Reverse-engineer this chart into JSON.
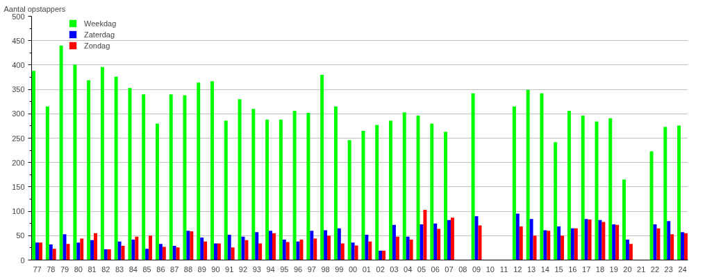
{
  "chart_data": {
    "type": "bar",
    "ylabel": "Aantal opstappers",
    "categories": [
      "77",
      "78",
      "79",
      "80",
      "81",
      "82",
      "83",
      "84",
      "85",
      "86",
      "87",
      "88",
      "89",
      "90",
      "91",
      "92",
      "93",
      "94",
      "95",
      "96",
      "97",
      "98",
      "99",
      "00",
      "01",
      "02",
      "03",
      "04",
      "05",
      "06",
      "07",
      "08",
      "09",
      "10",
      "11",
      "12",
      "13",
      "14",
      "15",
      "16",
      "17",
      "18",
      "19",
      "20",
      "21",
      "22",
      "23",
      "24"
    ],
    "series": [
      {
        "name": "Weekdag",
        "color": "#00ff00",
        "values": [
          388,
          315,
          440,
          401,
          369,
          396,
          376,
          353,
          340,
          280,
          340,
          338,
          364,
          367,
          286,
          330,
          310,
          288,
          288,
          306,
          302,
          380,
          315,
          246,
          265,
          277,
          286,
          303,
          296,
          280,
          263,
          null,
          342,
          null,
          null,
          315,
          349,
          342,
          242,
          306,
          296,
          284,
          291,
          165,
          null,
          223,
          273,
          276
        ]
      },
      {
        "name": "Zaterdag",
        "color": "#0000ff",
        "values": [
          36,
          32,
          53,
          36,
          41,
          22,
          38,
          42,
          23,
          33,
          29,
          60,
          46,
          34,
          52,
          48,
          57,
          60,
          42,
          38,
          60,
          61,
          65,
          36,
          52,
          19,
          72,
          48,
          73,
          75,
          82,
          null,
          90,
          null,
          null,
          95,
          84,
          61,
          69,
          65,
          84,
          82,
          73,
          42,
          null,
          73,
          80,
          57
        ]
      },
      {
        "name": "Zondag",
        "color": "#ff0000",
        "values": [
          36,
          23,
          33,
          44,
          55,
          22,
          29,
          48,
          50,
          27,
          26,
          59,
          38,
          34,
          26,
          41,
          34,
          55,
          37,
          42,
          44,
          50,
          34,
          30,
          38,
          19,
          48,
          42,
          103,
          64,
          87,
          null,
          71,
          null,
          null,
          69,
          50,
          60,
          50,
          65,
          83,
          78,
          72,
          33,
          null,
          65,
          53,
          55
        ]
      }
    ],
    "ylim": [
      0,
      500
    ],
    "yticks": [
      0,
      50,
      100,
      150,
      200,
      250,
      300,
      350,
      400,
      450,
      500
    ],
    "grid": "y",
    "legend": "top left"
  }
}
